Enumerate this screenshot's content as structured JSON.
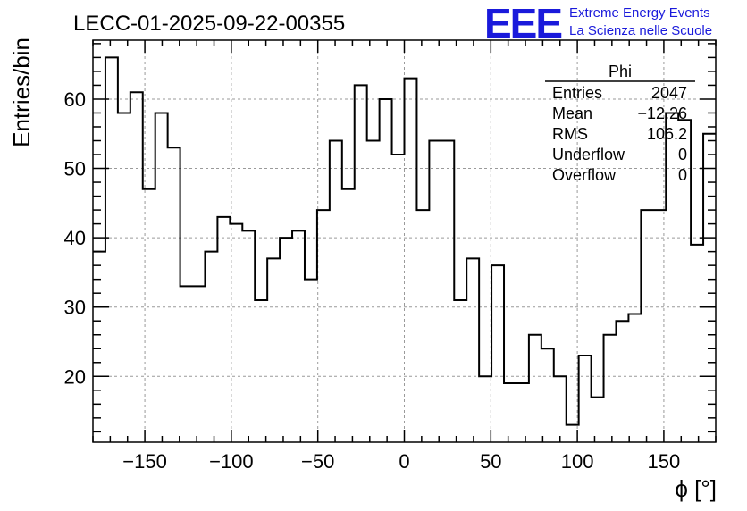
{
  "header": {
    "run_title": "LECC-01-2025-09-22-00355",
    "logo_mark": "EEE",
    "logo_line1": "Extreme Energy Events",
    "logo_line2": "La Scienza nelle Scuole",
    "logo_color": "#1a1adb"
  },
  "stats_box": {
    "name": "Phi",
    "rows": [
      {
        "label": "Entries",
        "value": "2047"
      },
      {
        "label": "Mean",
        "value": "−12.26"
      },
      {
        "label": "RMS",
        "value": "106.2"
      },
      {
        "label": "Underflow",
        "value": "0"
      },
      {
        "label": "Overflow",
        "value": "0"
      }
    ]
  },
  "chart_data": {
    "type": "histogram",
    "xlabel": "ϕ [°]",
    "ylabel": "Entries/bin",
    "xlim": [
      -180,
      180
    ],
    "ylim": [
      10.5,
      68.5
    ],
    "bin_width": 7.2,
    "x_ticks": [
      -150,
      -100,
      -50,
      0,
      50,
      100,
      150
    ],
    "x_tick_labels": [
      "−150",
      "−100",
      "−50",
      "0",
      "50",
      "100",
      "150"
    ],
    "y_ticks": [
      20,
      30,
      40,
      50,
      60
    ],
    "y_tick_labels": [
      "20",
      "30",
      "40",
      "50",
      "60"
    ],
    "grid": true,
    "line_color": "#000000",
    "values": [
      38,
      66,
      58,
      61,
      47,
      58,
      53,
      33,
      33,
      38,
      43,
      42,
      41,
      31,
      37,
      40,
      41,
      34,
      44,
      54,
      47,
      62,
      54,
      60,
      52,
      63,
      44,
      54,
      54,
      31,
      37,
      20,
      36,
      19,
      19,
      26,
      24,
      20,
      13,
      23,
      17,
      26,
      28,
      29,
      44,
      44,
      58,
      57,
      39,
      55
    ]
  }
}
